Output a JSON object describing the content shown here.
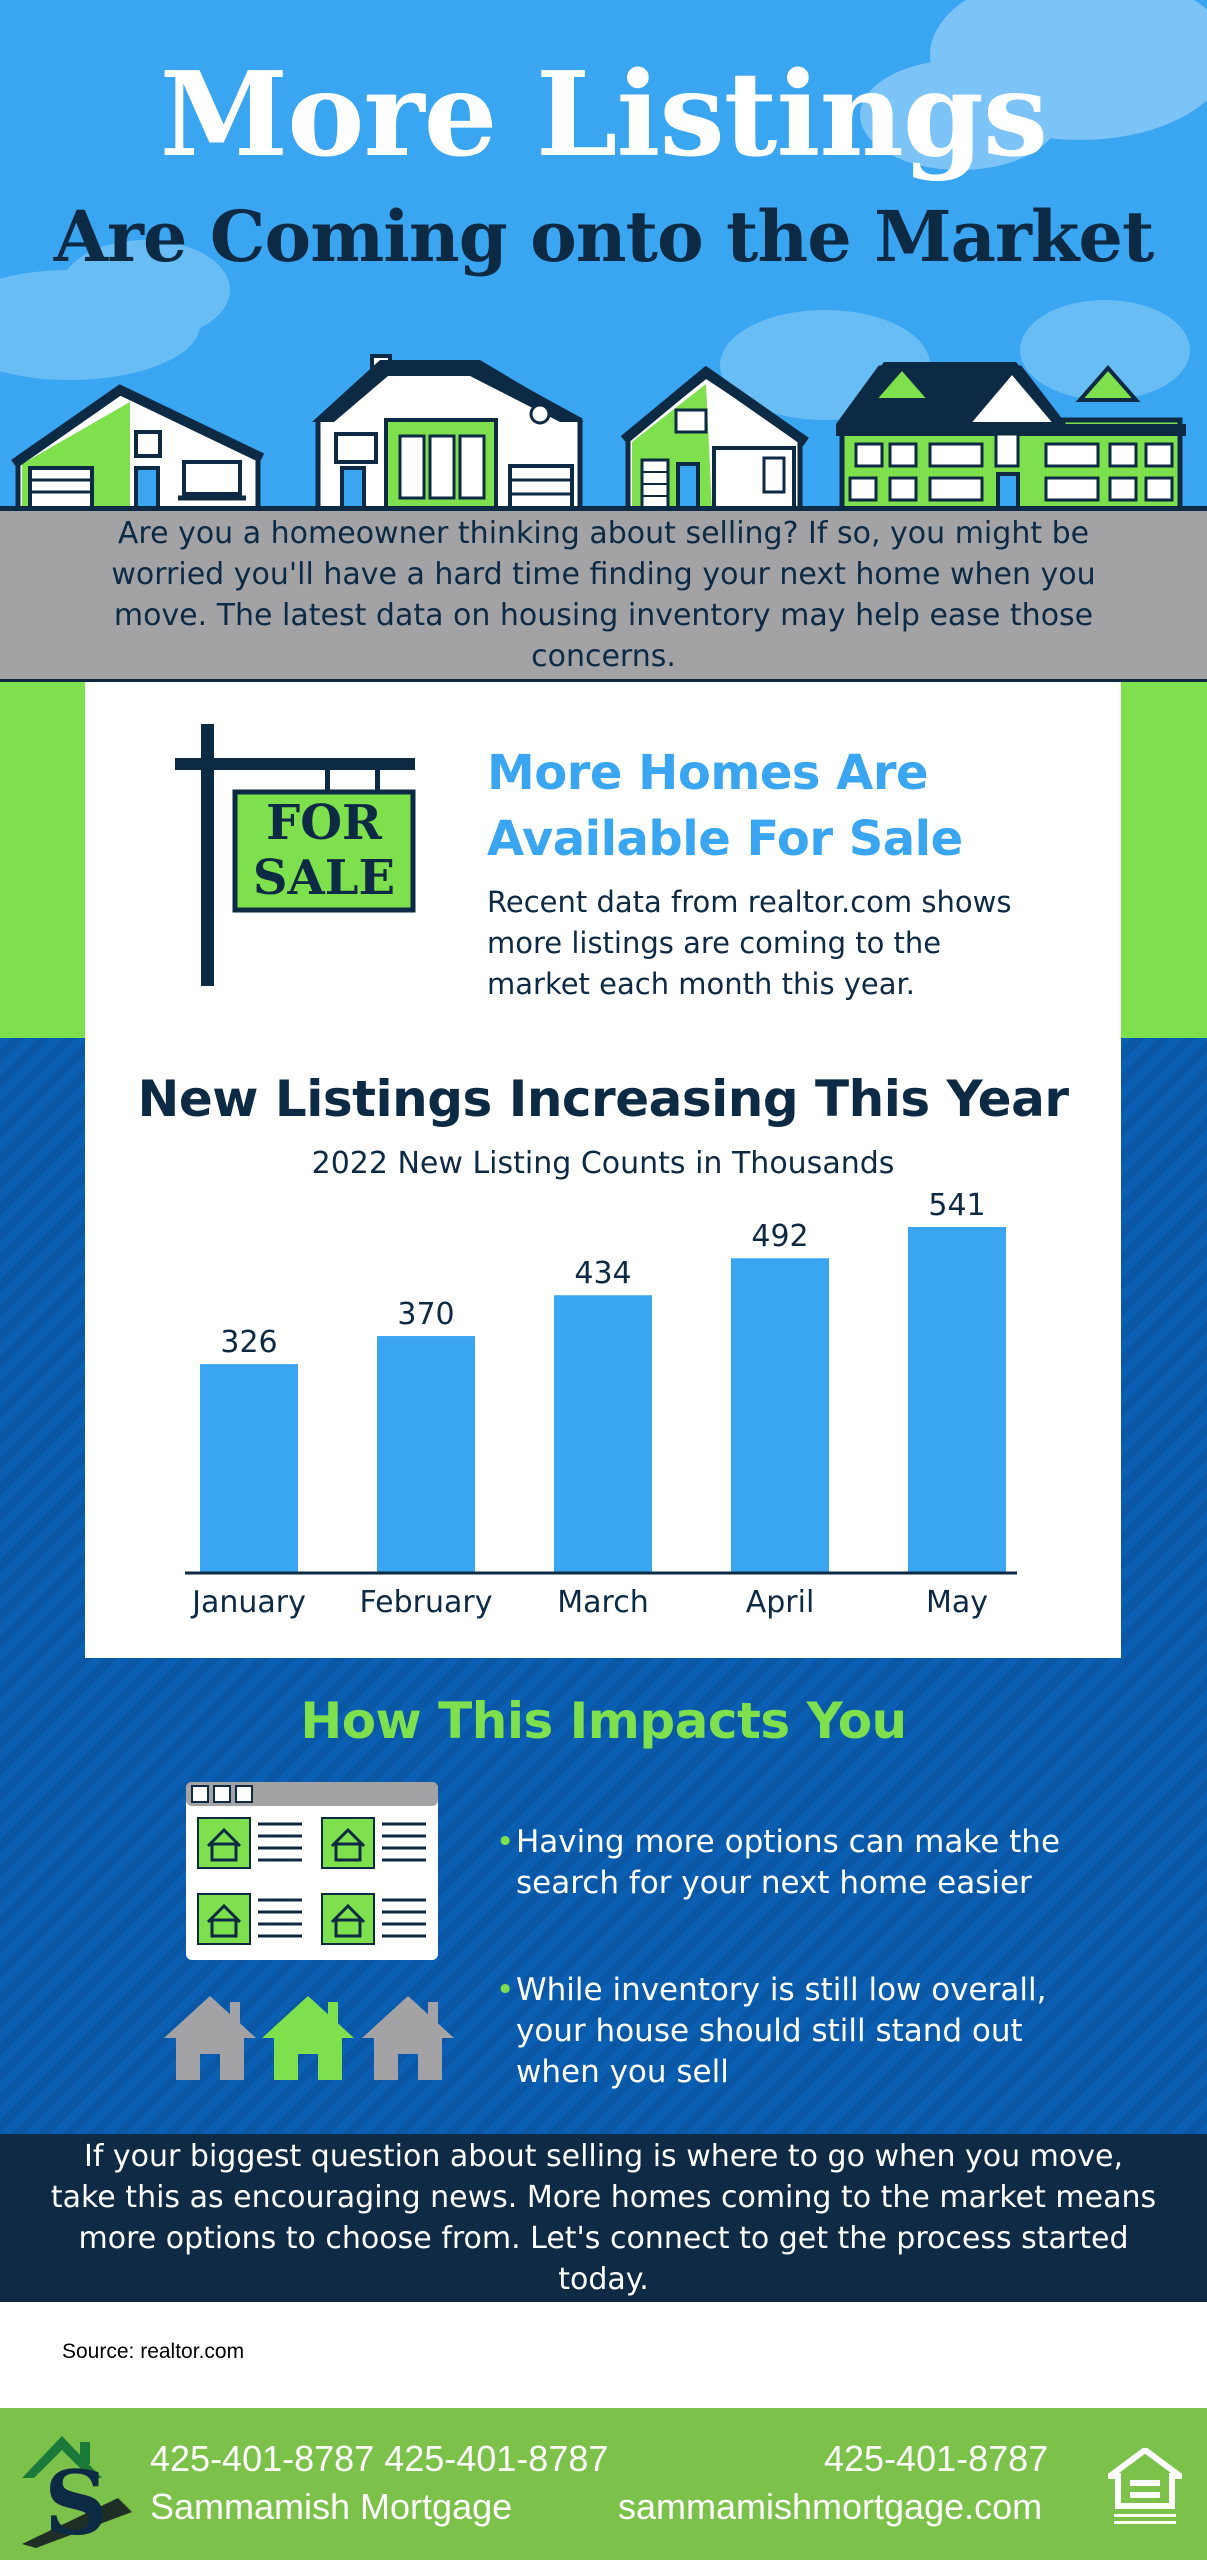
{
  "hero": {
    "title": "More Listings",
    "subtitle": "Are Coming onto the Market"
  },
  "intro": {
    "text": "Are you a homeowner thinking about selling? If so, you might be worried you'll have a hard time finding your next home when you move. The latest data on housing inventory may help ease those concerns."
  },
  "sign": {
    "line1": "FOR",
    "line2": "SALE"
  },
  "feature": {
    "title": "More Homes Are Available For Sale",
    "text": "Recent data from realtor.com shows more listings are coming to the market each month this year."
  },
  "colors": {
    "sky_blue": "#3aa6f2",
    "navy": "#0d2a45",
    "green": "#7ee04d",
    "gray": "#a3a3a6",
    "footer_green": "#7cc24a"
  },
  "chart_data": {
    "type": "bar",
    "title": "New Listings Increasing This Year",
    "subtitle": "2022 New Listing Counts in Thousands",
    "categories": [
      "January",
      "February",
      "March",
      "April",
      "May"
    ],
    "values": [
      326,
      370,
      434,
      492,
      541
    ],
    "data_labels": [
      "326",
      "370",
      "434",
      "492",
      "541"
    ],
    "ylim": [
      0,
      541
    ],
    "grid": false,
    "bar_color": "#3aa6f2"
  },
  "impact": {
    "title": "How This Impacts You",
    "bullets": [
      {
        "dot": "•",
        "text": "Having more options can make the search for your next home easier"
      },
      {
        "dot": "•",
        "text": "While inventory is still low overall, your house should still stand out when you sell"
      }
    ],
    "icons": [
      "browser-listings-icon",
      "houses-icon"
    ]
  },
  "closing": {
    "text": "If your biggest question about selling is where to go when you move, take this as encouraging news. More homes coming to the market means more options to choose from. Let's connect to get the process started today."
  },
  "source": {
    "text": "Source: realtor.com"
  },
  "footer": {
    "phone_left": "425-401-8787 425-401-8787",
    "company": "Sammamish Mortgage",
    "phone_right": "425-401-8787",
    "website": "sammamishmortgage.com",
    "icons": [
      "sammamish-logo-icon",
      "equal-housing-icon"
    ]
  }
}
